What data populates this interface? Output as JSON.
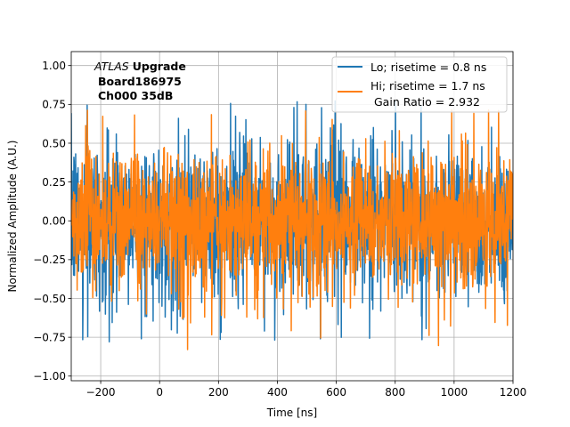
{
  "chart_data": {
    "type": "line",
    "xlabel": "Time [ns]",
    "ylabel": "Normalized Amplitude (A.U.)",
    "xlim": [
      -300,
      1200
    ],
    "ylim": [
      -1.03,
      1.09
    ],
    "xticks": [
      -200,
      0,
      200,
      400,
      600,
      800,
      1000,
      1200
    ],
    "yticks": [
      -1.0,
      -0.75,
      -0.5,
      -0.25,
      0.0,
      0.25,
      0.5,
      0.75,
      1.0
    ],
    "xtick_labels": [
      "−200",
      "0",
      "200",
      "400",
      "600",
      "800",
      "1000",
      "1200"
    ],
    "ytick_labels": [
      "−1.00",
      "−0.75",
      "−0.50",
      "−0.25",
      "0.00",
      "0.25",
      "0.50",
      "0.75",
      "1.00"
    ],
    "grid": true,
    "legend_position": "top-right",
    "annotation": {
      "italic": "ATLAS",
      "bold": "Upgrade",
      "line2": "Board186975",
      "line3": "Ch000 35dB"
    },
    "legend_extra": "Gain Ratio = 2.932",
    "series": [
      {
        "name": "Lo; risetime = 0.8 ns",
        "color": "#1f77b4",
        "noise_envelope": {
          "max": 0.78,
          "min": -0.78,
          "typical_abs": 0.25
        },
        "sample_step_ns": 1.0
      },
      {
        "name": "Hi; risetime = 1.7 ns",
        "color": "#ff7f0e",
        "noise_envelope": {
          "max": 0.72,
          "min": -0.83,
          "typical_abs": 0.22
        },
        "sample_step_ns": 1.0
      }
    ]
  }
}
